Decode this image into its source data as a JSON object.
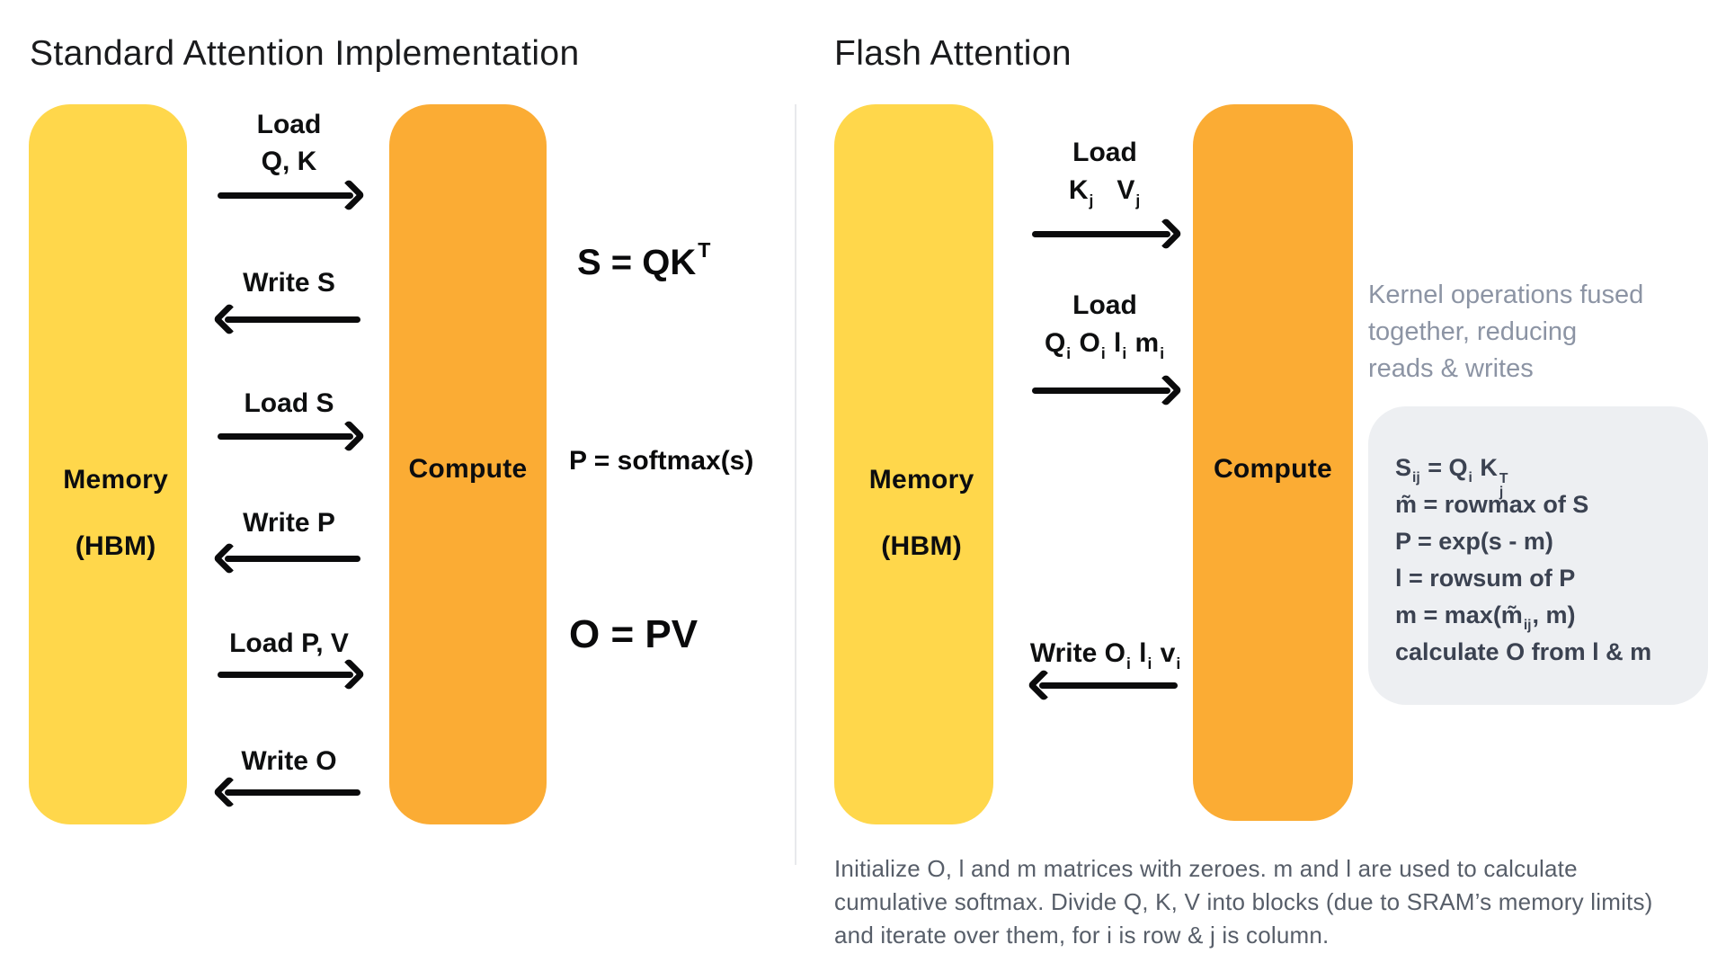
{
  "colors": {
    "memory_yellow": "#FFD74B",
    "compute_orange": "#FBAC34",
    "arrow_black": "#0B0B0C",
    "note_gray": "#8C94A4",
    "formula_box_bg": "#EDEFF2",
    "formula_box_text": "#3B4251",
    "footnote_gray": "#575E69",
    "divider_gray": "#E8E9EC"
  },
  "left": {
    "title": "Standard Attention Implementation",
    "memory": {
      "line1": "Memory",
      "line2": "(HBM)"
    },
    "compute": "Compute",
    "arrows": {
      "a1": {
        "line1": "Load",
        "line2": "Q, K"
      },
      "a2": {
        "label": "Write S"
      },
      "a3": {
        "label": "Load S"
      },
      "a4": {
        "label": "Write P"
      },
      "a5": {
        "label": "Load P, V"
      },
      "a6": {
        "label": "Write O"
      }
    },
    "formulas": {
      "f1": [
        {
          "t": "S = QK"
        },
        {
          "sup": "T"
        }
      ],
      "f2": "P = softmax(s)",
      "f3": "O = PV"
    }
  },
  "right": {
    "title": "Flash Attention",
    "memory": {
      "line1": "Memory",
      "line2": "(HBM)"
    },
    "compute": "Compute",
    "arrows": {
      "a1": {
        "line1": "Load",
        "line2": [
          {
            "t": "K"
          },
          {
            "sub": "j"
          },
          {
            "t": "   V"
          },
          {
            "sub": "j"
          }
        ]
      },
      "a2": {
        "line1": "Load",
        "line2": [
          {
            "t": "Q"
          },
          {
            "sub": "i"
          },
          {
            "t": " O"
          },
          {
            "sub": "i"
          },
          {
            "t": " l"
          },
          {
            "sub": "i"
          },
          {
            "t": " m"
          },
          {
            "sub": "i"
          }
        ]
      },
      "a3": {
        "label": [
          {
            "t": "Write O"
          },
          {
            "sub": "i"
          },
          {
            "t": " l"
          },
          {
            "sub": "i"
          },
          {
            "t": " v"
          },
          {
            "sub": "i"
          }
        ]
      }
    },
    "note_lines": [
      "Kernel operations fused",
      "together, reducing",
      "reads & writes"
    ],
    "box_formulas": [
      [
        {
          "t": "S"
        },
        {
          "sub": "ij"
        },
        {
          "t": " = Q"
        },
        {
          "sub": "i"
        },
        {
          "t": " K"
        },
        {
          "stack": {
            "sup": "T",
            "sub": "j"
          }
        }
      ],
      [
        {
          "t": "m̃ = rowmax of S"
        }
      ],
      [
        {
          "t": "P = exp(s - m)"
        }
      ],
      [
        {
          "t": "l = rowsum of P"
        }
      ],
      [
        {
          "t": "m = max(m̃"
        },
        {
          "sub": "ij"
        },
        {
          "t": ", m)"
        }
      ],
      [
        {
          "t": "calculate O from l & m"
        }
      ]
    ],
    "footnote_lines": [
      "Initialize O, l and m matrices with zeroes. m and l are used to calculate",
      "cumulative softmax. Divide Q, K, V into blocks (due to SRAM’s memory limits)",
      "and iterate over them, for i is row & j is column."
    ]
  }
}
